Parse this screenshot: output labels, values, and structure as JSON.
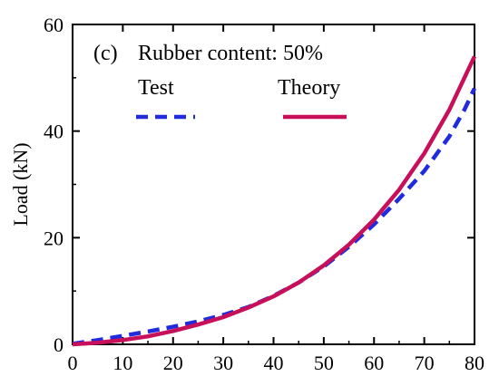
{
  "chart_data": {
    "type": "line",
    "ylabel": "Load (kN)",
    "xlabel": "",
    "xlim": [
      0,
      80
    ],
    "ylim": [
      0,
      60
    ],
    "x_ticks": [
      "0",
      "10",
      "20",
      "30",
      "40",
      "50",
      "60",
      "70",
      "80"
    ],
    "y_ticks": [
      "0",
      "20",
      "40",
      "60"
    ],
    "panel_label": "(c)",
    "annotation": "Rubber content: 50%",
    "grid": false,
    "legend_position": "top",
    "series": [
      {
        "name": "Test",
        "color": "#1f2bdc",
        "style": "dashed",
        "x": [
          0,
          5,
          10,
          15,
          20,
          25,
          30,
          35,
          40,
          45,
          50,
          55,
          60,
          65,
          70,
          75,
          78,
          80
        ],
        "y": [
          0.1,
          0.8,
          1.6,
          2.4,
          3.3,
          4.3,
          5.5,
          7.0,
          9.1,
          11.6,
          14.6,
          18.3,
          22.5,
          27.3,
          32.5,
          39.0,
          44.0,
          48.0
        ]
      },
      {
        "name": "Theory",
        "color": "#c8105a",
        "style": "solid",
        "x": [
          0,
          5,
          10,
          15,
          20,
          25,
          30,
          35,
          40,
          45,
          50,
          55,
          60,
          65,
          70,
          75,
          80
        ],
        "y": [
          0,
          0.3,
          0.8,
          1.5,
          2.5,
          3.7,
          5.1,
          6.9,
          9.0,
          11.6,
          14.8,
          18.7,
          23.4,
          29.0,
          35.8,
          44.0,
          54.0
        ]
      }
    ]
  }
}
